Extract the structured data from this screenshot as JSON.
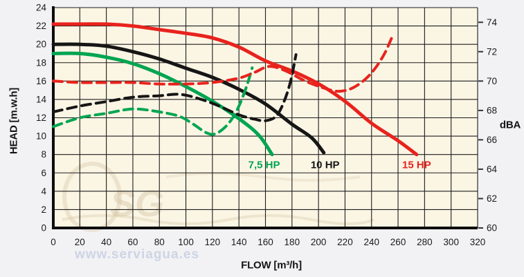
{
  "watermark": {
    "logo_text": "SG",
    "url_text": "www.serviagua.es"
  },
  "colors": {
    "plot_background": "#fbf5e4",
    "page_background": "#f2f2f5",
    "grid": "#1c1c1c",
    "axis": "#0d0d0d",
    "red": "#e8231d",
    "green": "#00a551",
    "black": "#161616",
    "tick_text": "#1a1a1a"
  },
  "chart_data": {
    "type": "line",
    "title": "",
    "xlabel": "FLOW [m³/h]",
    "ylabel_left": "HEAD [m.w.h]",
    "ylabel_right": "dBA",
    "grid": true,
    "legend_position": "none",
    "x_axis": {
      "min": 0,
      "max": 320,
      "ticks": [
        0,
        20,
        40,
        60,
        80,
        100,
        120,
        140,
        160,
        180,
        200,
        220,
        240,
        260,
        280,
        300,
        320
      ]
    },
    "y_left_axis": {
      "min": 0,
      "max": 24,
      "ticks": [
        0,
        2,
        4,
        6,
        8,
        10,
        12,
        14,
        16,
        18,
        20,
        22,
        24
      ]
    },
    "y_right_axis": {
      "min": 60,
      "max": 75,
      "ticks": [
        60,
        62,
        64,
        66,
        68,
        70,
        72,
        74
      ]
    },
    "series": [
      {
        "id": "head-7-5hp",
        "name": "7,5 HP head curve",
        "role": "head_curve",
        "axis": "left",
        "dash": false,
        "color": "#00a551",
        "color_name": "green",
        "label": {
          "text": "7,5 HP",
          "x": 159,
          "y": 6.9
        },
        "points": [
          [
            0,
            19.0
          ],
          [
            20,
            19.0
          ],
          [
            40,
            18.6
          ],
          [
            60,
            17.9
          ],
          [
            80,
            16.8
          ],
          [
            100,
            15.4
          ],
          [
            120,
            13.8
          ],
          [
            140,
            11.9
          ],
          [
            155,
            10.1
          ],
          [
            165,
            8.0
          ]
        ]
      },
      {
        "id": "head-10hp",
        "name": "10 HP head curve",
        "role": "head_curve",
        "axis": "left",
        "dash": false,
        "color": "#161616",
        "color_name": "black",
        "label": {
          "text": "10 HP",
          "x": 205,
          "y": 6.9
        },
        "points": [
          [
            0,
            20.0
          ],
          [
            20,
            20.0
          ],
          [
            40,
            19.8
          ],
          [
            60,
            19.2
          ],
          [
            80,
            18.4
          ],
          [
            100,
            17.4
          ],
          [
            120,
            16.4
          ],
          [
            140,
            15.1
          ],
          [
            160,
            13.5
          ],
          [
            180,
            11.3
          ],
          [
            195,
            9.8
          ],
          [
            204,
            8.2
          ]
        ]
      },
      {
        "id": "head-15hp",
        "name": "15 HP head curve",
        "role": "head_curve",
        "axis": "left",
        "dash": false,
        "color": "#e8231d",
        "color_name": "red",
        "label": {
          "text": "15 HP",
          "x": 274,
          "y": 6.9
        },
        "points": [
          [
            0,
            22.2
          ],
          [
            20,
            22.2
          ],
          [
            40,
            22.2
          ],
          [
            60,
            22.0
          ],
          [
            80,
            21.6
          ],
          [
            100,
            21.2
          ],
          [
            120,
            20.7
          ],
          [
            140,
            19.7
          ],
          [
            160,
            18.2
          ],
          [
            180,
            17.1
          ],
          [
            200,
            15.7
          ],
          [
            220,
            13.8
          ],
          [
            240,
            11.4
          ],
          [
            260,
            9.5
          ],
          [
            274,
            8.0
          ]
        ]
      },
      {
        "id": "dba-7-5hp",
        "name": "7,5 HP noise curve (dBA)",
        "role": "noise_curve",
        "axis": "right",
        "dash": true,
        "color": "#00a551",
        "color_name": "green",
        "points": [
          [
            0,
            66.9
          ],
          [
            20,
            67.5
          ],
          [
            40,
            67.8
          ],
          [
            60,
            68.1
          ],
          [
            80,
            67.9
          ],
          [
            95,
            67.6
          ],
          [
            105,
            67.1
          ],
          [
            115,
            66.5
          ],
          [
            122,
            66.4
          ],
          [
            130,
            66.9
          ],
          [
            136,
            67.6
          ],
          [
            141,
            68.5
          ],
          [
            146,
            69.7
          ],
          [
            150,
            70.9
          ]
        ]
      },
      {
        "id": "dba-10hp",
        "name": "10 HP noise curve (dBA)",
        "role": "noise_curve",
        "axis": "right",
        "dash": true,
        "color": "#161616",
        "color_name": "black",
        "points": [
          [
            0,
            67.9
          ],
          [
            20,
            68.3
          ],
          [
            40,
            68.6
          ],
          [
            60,
            68.9
          ],
          [
            80,
            69.0
          ],
          [
            95,
            69.1
          ],
          [
            110,
            68.8
          ],
          [
            125,
            68.3
          ],
          [
            140,
            67.7
          ],
          [
            152,
            67.4
          ],
          [
            160,
            67.3
          ],
          [
            168,
            67.6
          ],
          [
            174,
            68.6
          ],
          [
            179,
            70.0
          ],
          [
            183,
            71.8
          ]
        ]
      },
      {
        "id": "dba-15hp",
        "name": "15 HP noise curve (dBA)",
        "role": "noise_curve",
        "axis": "right",
        "dash": true,
        "color": "#e8231d",
        "color_name": "red",
        "points": [
          [
            0,
            70.0
          ],
          [
            20,
            69.9
          ],
          [
            40,
            69.9
          ],
          [
            60,
            69.9
          ],
          [
            80,
            69.8
          ],
          [
            100,
            69.8
          ],
          [
            120,
            69.9
          ],
          [
            140,
            70.2
          ],
          [
            152,
            70.6
          ],
          [
            163,
            71.0
          ],
          [
            175,
            70.7
          ],
          [
            190,
            70.0
          ],
          [
            205,
            69.5
          ],
          [
            215,
            69.3
          ],
          [
            225,
            69.5
          ],
          [
            235,
            70.1
          ],
          [
            243,
            70.9
          ],
          [
            250,
            71.9
          ],
          [
            255,
            72.9
          ]
        ]
      }
    ]
  }
}
